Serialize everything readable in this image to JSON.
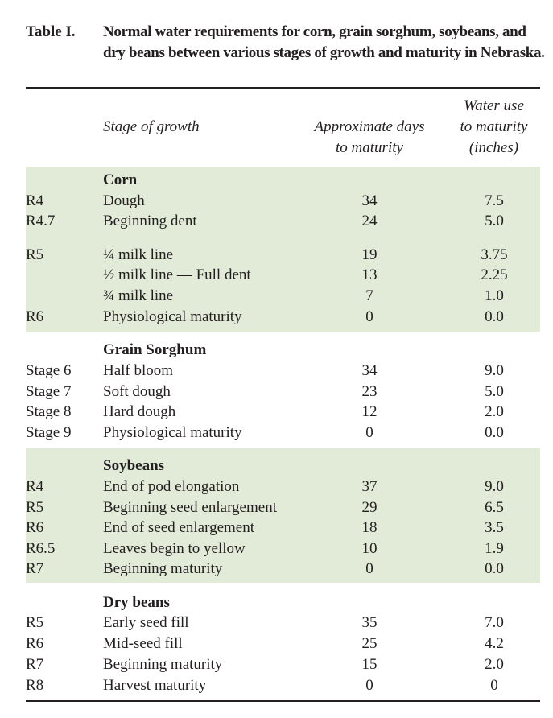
{
  "caption": {
    "label": "Table I.",
    "text": "Normal water requirements for corn, grain sorghum, soybeans, and dry beans between various stages of growth and maturity in Nebraska."
  },
  "headers": {
    "stage": "Stage of growth",
    "days": [
      "Approximate days",
      "to maturity"
    ],
    "water": [
      "Water use",
      "to maturity",
      "(inches)"
    ]
  },
  "band_color": "#e1ebd8",
  "crops": [
    {
      "name": "Corn",
      "rows": [
        {
          "code": "R4",
          "stage": "Dough",
          "days": "34",
          "water": "7.5"
        },
        {
          "code": "R4.7",
          "stage": "Beginning dent",
          "days": "24",
          "water": "5.0"
        },
        {
          "code": "R5",
          "stage": "¼ milk line",
          "days": "19",
          "water": "3.75"
        },
        {
          "code": "",
          "stage": "½ milk line — Full dent",
          "days": "13",
          "water": "2.25"
        },
        {
          "code": "",
          "stage": "¾ milk line",
          "days": "7",
          "water": "1.0"
        },
        {
          "code": "R6",
          "stage": "Physiological maturity",
          "days": "0",
          "water": "0.0"
        }
      ]
    },
    {
      "name": "Grain Sorghum",
      "rows": [
        {
          "code": "Stage 6",
          "stage": "Half bloom",
          "days": "34",
          "water": "9.0"
        },
        {
          "code": "Stage 7",
          "stage": "Soft dough",
          "days": "23",
          "water": "5.0"
        },
        {
          "code": "Stage 8",
          "stage": "Hard dough",
          "days": "12",
          "water": "2.0"
        },
        {
          "code": "Stage 9",
          "stage": "Physiological maturity",
          "days": "0",
          "water": "0.0"
        }
      ]
    },
    {
      "name": "Soybeans",
      "rows": [
        {
          "code": "R4",
          "stage": "End of pod elongation",
          "days": "37",
          "water": "9.0"
        },
        {
          "code": "R5",
          "stage": "Beginning seed enlargement",
          "days": "29",
          "water": "6.5"
        },
        {
          "code": "R6",
          "stage": "End of seed enlargement",
          "days": "18",
          "water": "3.5"
        },
        {
          "code": "R6.5",
          "stage": "Leaves begin to yellow",
          "days": "10",
          "water": "1.9"
        },
        {
          "code": "R7",
          "stage": "Beginning maturity",
          "days": "0",
          "water": "0.0"
        }
      ]
    },
    {
      "name": "Dry beans",
      "rows": [
        {
          "code": "R5",
          "stage": "Early seed fill",
          "days": "35",
          "water": "7.0"
        },
        {
          "code": "R6",
          "stage": "Mid-seed fill",
          "days": "25",
          "water": "4.2"
        },
        {
          "code": "R7",
          "stage": "Beginning maturity",
          "days": "15",
          "water": "2.0"
        },
        {
          "code": "R8",
          "stage": "Harvest maturity",
          "days": "0",
          "water": "0"
        }
      ]
    }
  ]
}
